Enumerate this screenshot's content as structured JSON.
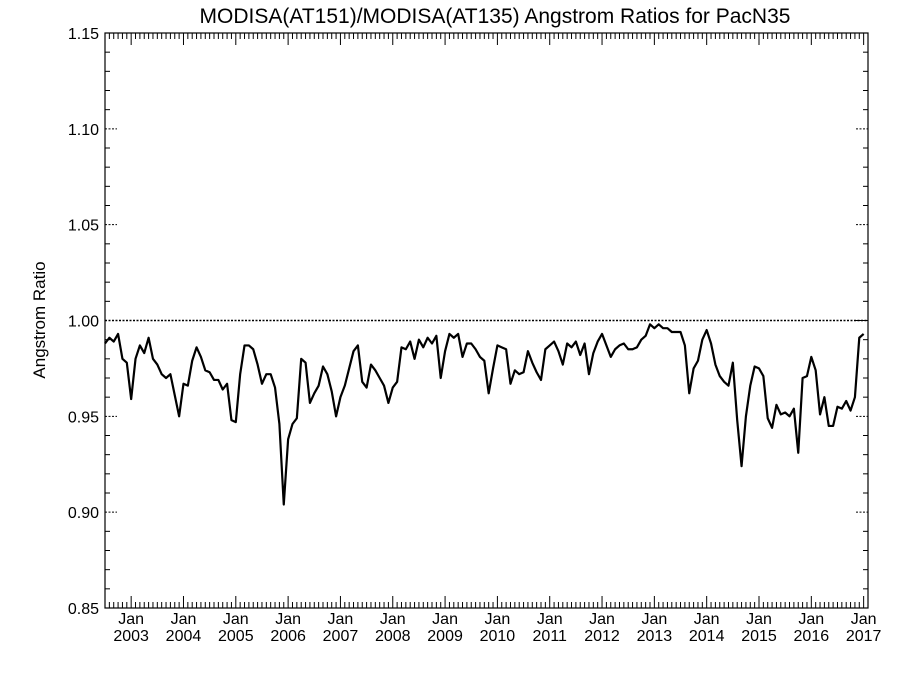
{
  "chart_data": {
    "type": "line",
    "title": "MODISA(AT151)/MODISA(AT135)  Angstrom Ratios for PacN35",
    "ylabel": "Angstrom Ratio",
    "xlabel": "",
    "ylim": [
      0.85,
      1.15
    ],
    "xlim": [
      "2002-07",
      "2017-02"
    ],
    "grid": false,
    "reference_line": 1.0,
    "y_ticks": [
      "0.85",
      "0.90",
      "0.95",
      "1.00",
      "1.05",
      "1.10",
      "1.15"
    ],
    "x_ticks": [
      {
        "month": "Jan",
        "year": "2003",
        "date": "2003-01"
      },
      {
        "month": "Jan",
        "year": "2004",
        "date": "2004-01"
      },
      {
        "month": "Jan",
        "year": "2005",
        "date": "2005-01"
      },
      {
        "month": "Jan",
        "year": "2006",
        "date": "2006-01"
      },
      {
        "month": "Jan",
        "year": "2007",
        "date": "2007-01"
      },
      {
        "month": "Jan",
        "year": "2008",
        "date": "2008-01"
      },
      {
        "month": "Jan",
        "year": "2009",
        "date": "2009-01"
      },
      {
        "month": "Jan",
        "year": "2010",
        "date": "2010-01"
      },
      {
        "month": "Jan",
        "year": "2011",
        "date": "2011-01"
      },
      {
        "month": "Jan",
        "year": "2012",
        "date": "2012-01"
      },
      {
        "month": "Jan",
        "year": "2013",
        "date": "2013-01"
      },
      {
        "month": "Jan",
        "year": "2014",
        "date": "2014-01"
      },
      {
        "month": "Jan",
        "year": "2015",
        "date": "2015-01"
      },
      {
        "month": "Jan",
        "year": "2016",
        "date": "2016-01"
      },
      {
        "month": "Jan",
        "year": "2017",
        "date": "2017-01"
      }
    ],
    "series": [
      {
        "start": "2002-07",
        "step": "month",
        "values": [
          0.988,
          0.991,
          0.989,
          0.993,
          0.98,
          0.978,
          0.959,
          0.98,
          0.987,
          0.983,
          0.991,
          0.98,
          0.977,
          0.972,
          0.97,
          0.972,
          0.961,
          0.95,
          0.967,
          0.966,
          0.979,
          0.986,
          0.981,
          0.974,
          0.973,
          0.969,
          0.969,
          0.964,
          0.967,
          0.948,
          0.947,
          0.972,
          0.987,
          0.987,
          0.985,
          0.977,
          0.967,
          0.972,
          0.972,
          0.965,
          0.946,
          0.904,
          0.938,
          0.946,
          0.949,
          0.98,
          0.978,
          0.957,
          0.962,
          0.966,
          0.976,
          0.972,
          0.963,
          0.95,
          0.96,
          0.966,
          0.975,
          0.984,
          0.987,
          0.968,
          0.965,
          0.977,
          0.974,
          0.97,
          0.966,
          0.957,
          0.965,
          0.968,
          0.986,
          0.985,
          0.989,
          0.98,
          0.99,
          0.986,
          0.991,
          0.988,
          0.992,
          0.97,
          0.984,
          0.993,
          0.991,
          0.993,
          0.981,
          0.988,
          0.988,
          0.985,
          0.981,
          0.979,
          0.962,
          0.975,
          0.987,
          0.986,
          0.985,
          0.967,
          0.974,
          0.972,
          0.973,
          0.984,
          0.978,
          0.973,
          0.969,
          0.985,
          0.987,
          0.989,
          0.984,
          0.977,
          0.988,
          0.986,
          0.989,
          0.982,
          0.988,
          0.972,
          0.983,
          0.989,
          0.993,
          0.987,
          0.981,
          0.985,
          0.987,
          0.988,
          0.985,
          0.985,
          0.986,
          0.99,
          0.992,
          0.998,
          0.996,
          0.998,
          0.996,
          0.996,
          0.994,
          0.994,
          0.994,
          0.987,
          0.962,
          0.975,
          0.979,
          0.99,
          0.995,
          0.988,
          0.977,
          0.971,
          0.968,
          0.966,
          0.978,
          0.948,
          0.924,
          0.95,
          0.966,
          0.976,
          0.975,
          0.971,
          0.949,
          0.944,
          0.956,
          0.951,
          0.952,
          0.95,
          0.954,
          0.931,
          0.97,
          0.971,
          0.981,
          0.974,
          0.951,
          0.96,
          0.945,
          0.945,
          0.955,
          0.954,
          0.958,
          0.953,
          0.96,
          0.991,
          0.993
        ]
      }
    ]
  }
}
